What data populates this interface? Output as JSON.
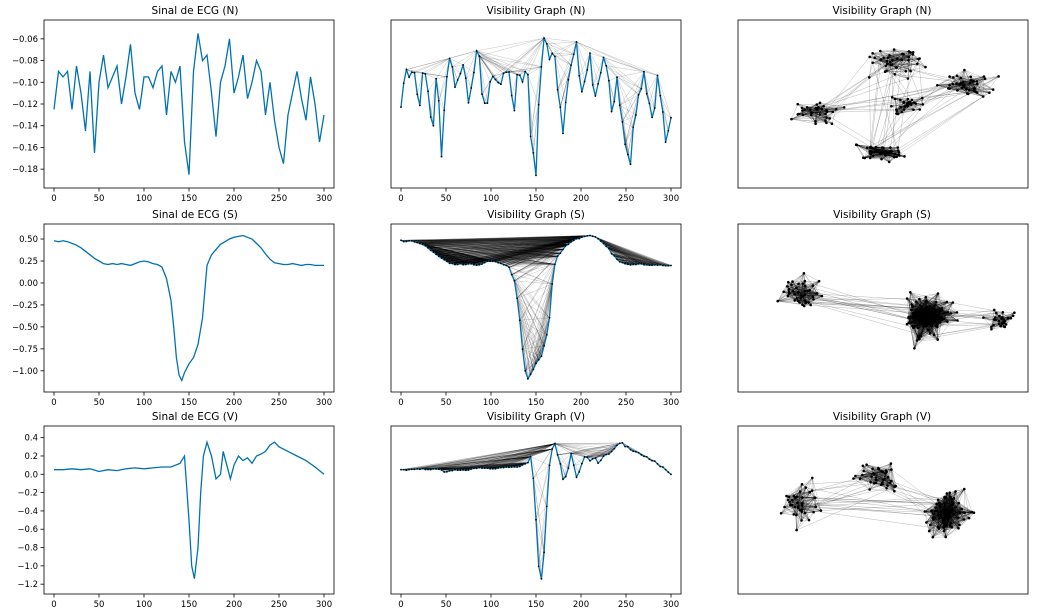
{
  "colors": {
    "signal": "#0072b2",
    "edge": "#000000",
    "node": "#000000",
    "axes": "#000000"
  },
  "panels": [
    {
      "id": "ecg_n",
      "kind": "line",
      "title": "Sinal de ECG (N)",
      "xticks": [
        0,
        50,
        100,
        150,
        200,
        250,
        300
      ],
      "yticks": [
        -0.06,
        -0.08,
        -0.1,
        -0.12,
        -0.14,
        -0.16,
        -0.18
      ],
      "ytick_labels": [
        "−0.06",
        "−0.08",
        "−0.10",
        "−0.12",
        "−0.14",
        "−0.16",
        "−0.18"
      ]
    },
    {
      "id": "vg_n",
      "kind": "visibility",
      "title": "Visibility Graph (N)",
      "xticks": [
        0,
        50,
        100,
        150,
        200,
        250,
        300
      ]
    },
    {
      "id": "net_n",
      "kind": "network",
      "title": "Visibility Graph (N)"
    },
    {
      "id": "ecg_s",
      "kind": "line",
      "title": "Sinal de ECG (S)",
      "xticks": [
        0,
        50,
        100,
        150,
        200,
        250,
        300
      ],
      "yticks": [
        0.5,
        0.25,
        0.0,
        -0.25,
        -0.5,
        -0.75,
        -1.0
      ],
      "ytick_labels": [
        "0.50",
        "0.25",
        "0.00",
        "−0.25",
        "−0.50",
        "−0.75",
        "−1.00"
      ]
    },
    {
      "id": "vg_s",
      "kind": "visibility",
      "title": "Visibility Graph (S)",
      "xticks": [
        0,
        50,
        100,
        150,
        200,
        250,
        300
      ]
    },
    {
      "id": "net_s",
      "kind": "network",
      "title": "Visibility Graph (S)"
    },
    {
      "id": "ecg_v",
      "kind": "line",
      "title": "Sinal de ECG (V)",
      "xticks": [
        0,
        50,
        100,
        150,
        200,
        250,
        300
      ],
      "yticks": [
        0.4,
        0.2,
        0.0,
        -0.2,
        -0.4,
        -0.6,
        -0.8,
        -1.0,
        -1.2
      ],
      "ytick_labels": [
        "0.4",
        "0.2",
        "0.0",
        "−0.2",
        "−0.4",
        "−0.6",
        "−0.8",
        "−1.0",
        "−1.2"
      ]
    },
    {
      "id": "vg_v",
      "kind": "visibility",
      "title": "Visibility Graph (V)",
      "xticks": [
        0,
        50,
        100,
        150,
        200,
        250,
        300
      ]
    },
    {
      "id": "net_v",
      "kind": "network",
      "title": "Visibility Graph (V)"
    }
  ],
  "chart_data": [
    {
      "type": "line",
      "title": "Sinal de ECG (N)",
      "xlim": [
        0,
        300
      ],
      "ylim": [
        -0.19,
        -0.05
      ],
      "x": [
        0,
        5,
        10,
        15,
        20,
        25,
        30,
        35,
        40,
        45,
        50,
        55,
        60,
        65,
        70,
        75,
        80,
        85,
        90,
        95,
        100,
        105,
        110,
        115,
        120,
        125,
        130,
        135,
        140,
        145,
        150,
        155,
        160,
        165,
        170,
        175,
        180,
        185,
        190,
        195,
        200,
        205,
        210,
        215,
        220,
        225,
        230,
        235,
        240,
        245,
        250,
        255,
        260,
        265,
        270,
        275,
        280,
        285,
        290,
        295,
        300
      ],
      "y": [
        -0.125,
        -0.09,
        -0.095,
        -0.09,
        -0.125,
        -0.085,
        -0.11,
        -0.145,
        -0.09,
        -0.165,
        -0.1,
        -0.075,
        -0.105,
        -0.095,
        -0.085,
        -0.12,
        -0.095,
        -0.065,
        -0.11,
        -0.125,
        -0.095,
        -0.095,
        -0.105,
        -0.09,
        -0.085,
        -0.13,
        -0.09,
        -0.1,
        -0.085,
        -0.155,
        -0.185,
        -0.09,
        -0.055,
        -0.08,
        -0.075,
        -0.11,
        -0.15,
        -0.1,
        -0.085,
        -0.06,
        -0.11,
        -0.095,
        -0.075,
        -0.115,
        -0.1,
        -0.08,
        -0.09,
        -0.13,
        -0.1,
        -0.135,
        -0.16,
        -0.175,
        -0.13,
        -0.11,
        -0.09,
        -0.115,
        -0.135,
        -0.095,
        -0.12,
        -0.155,
        -0.13
      ]
    },
    {
      "type": "line",
      "title": "Visibility Graph (N)",
      "xlim": [
        0,
        300
      ],
      "ylim": [
        -0.19,
        -0.05
      ],
      "series_ref": "Sinal de ECG (N)"
    },
    {
      "type": "network",
      "title": "Visibility Graph (N)"
    },
    {
      "type": "line",
      "title": "Sinal de ECG (S)",
      "xlim": [
        0,
        300
      ],
      "ylim": [
        -1.15,
        0.58
      ],
      "x": [
        0,
        5,
        10,
        15,
        20,
        25,
        30,
        35,
        40,
        45,
        50,
        55,
        60,
        65,
        70,
        75,
        80,
        85,
        90,
        95,
        100,
        105,
        110,
        115,
        120,
        125,
        130,
        133,
        136,
        139,
        142,
        145,
        150,
        155,
        160,
        165,
        170,
        175,
        180,
        185,
        190,
        195,
        200,
        205,
        210,
        215,
        220,
        225,
        230,
        235,
        240,
        245,
        250,
        255,
        260,
        265,
        270,
        275,
        280,
        285,
        290,
        295,
        300
      ],
      "y": [
        0.48,
        0.47,
        0.48,
        0.47,
        0.45,
        0.43,
        0.4,
        0.36,
        0.32,
        0.28,
        0.25,
        0.22,
        0.21,
        0.22,
        0.21,
        0.22,
        0.21,
        0.2,
        0.22,
        0.24,
        0.25,
        0.24,
        0.22,
        0.21,
        0.18,
        0.05,
        -0.2,
        -0.5,
        -0.85,
        -1.05,
        -1.11,
        -1.02,
        -0.92,
        -0.85,
        -0.7,
        -0.4,
        0.2,
        0.32,
        0.38,
        0.44,
        0.47,
        0.5,
        0.52,
        0.53,
        0.54,
        0.52,
        0.5,
        0.45,
        0.4,
        0.33,
        0.27,
        0.23,
        0.22,
        0.21,
        0.21,
        0.22,
        0.21,
        0.2,
        0.21,
        0.21,
        0.2,
        0.2,
        0.2
      ]
    },
    {
      "type": "line",
      "title": "Visibility Graph (S)",
      "xlim": [
        0,
        300
      ],
      "ylim": [
        -1.15,
        0.58
      ],
      "series_ref": "Sinal de ECG (S)"
    },
    {
      "type": "network",
      "title": "Visibility Graph (S)"
    },
    {
      "type": "line",
      "title": "Sinal de ECG (V)",
      "xlim": [
        0,
        300
      ],
      "ylim": [
        -1.22,
        0.44
      ],
      "x": [
        0,
        10,
        20,
        30,
        40,
        50,
        60,
        70,
        80,
        90,
        100,
        110,
        120,
        130,
        140,
        145,
        150,
        153,
        156,
        160,
        163,
        166,
        170,
        175,
        180,
        185,
        188,
        192,
        196,
        200,
        205,
        210,
        215,
        220,
        225,
        230,
        235,
        240,
        245,
        250,
        260,
        270,
        280,
        290,
        300
      ],
      "y": [
        0.05,
        0.05,
        0.06,
        0.05,
        0.06,
        0.03,
        0.05,
        0.04,
        0.06,
        0.07,
        0.06,
        0.07,
        0.08,
        0.08,
        0.12,
        0.2,
        -0.5,
        -1.0,
        -1.14,
        -0.8,
        -0.2,
        0.2,
        0.35,
        0.2,
        -0.05,
        0.0,
        0.25,
        0.1,
        -0.05,
        0.1,
        0.2,
        0.15,
        0.18,
        0.12,
        0.2,
        0.22,
        0.25,
        0.32,
        0.35,
        0.3,
        0.25,
        0.2,
        0.15,
        0.08,
        0.0
      ]
    },
    {
      "type": "line",
      "title": "Visibility Graph (V)",
      "xlim": [
        0,
        300
      ],
      "ylim": [
        -1.22,
        0.44
      ],
      "series_ref": "Sinal de ECG (V)"
    },
    {
      "type": "network",
      "title": "Visibility Graph (V)"
    }
  ]
}
